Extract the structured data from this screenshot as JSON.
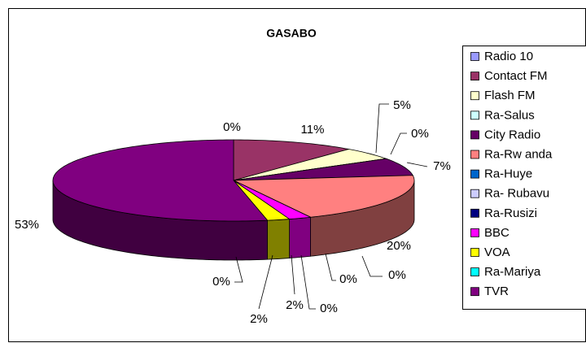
{
  "chart_data": {
    "type": "pie",
    "title": "GASABO",
    "categories": [
      "Radio 10",
      "Contact FM",
      "Flash FM",
      "Ra-Salus",
      "City Radio",
      "Ra-Rw anda",
      "Ra-Huye",
      "Ra- Rubavu",
      "Ra-Rusizi",
      "BBC",
      "VOA",
      "Ra-Mariya",
      "TVR"
    ],
    "values": [
      0,
      11,
      5,
      0,
      7,
      20,
      0,
      0,
      0,
      2,
      2,
      0,
      53
    ],
    "value_labels": [
      "0%",
      "11%",
      "5%",
      "0%",
      "7%",
      "20%",
      "0%",
      "0%",
      "0%",
      "2%",
      "2%",
      "0%",
      "53%"
    ],
    "colors": [
      "#9999ff",
      "#993366",
      "#ffffcc",
      "#ccffff",
      "#660066",
      "#ff8080",
      "#0066cc",
      "#ccccff",
      "#000080",
      "#ff00ff",
      "#ffff00",
      "#00ffff",
      "#800080"
    ],
    "legend": "right"
  }
}
